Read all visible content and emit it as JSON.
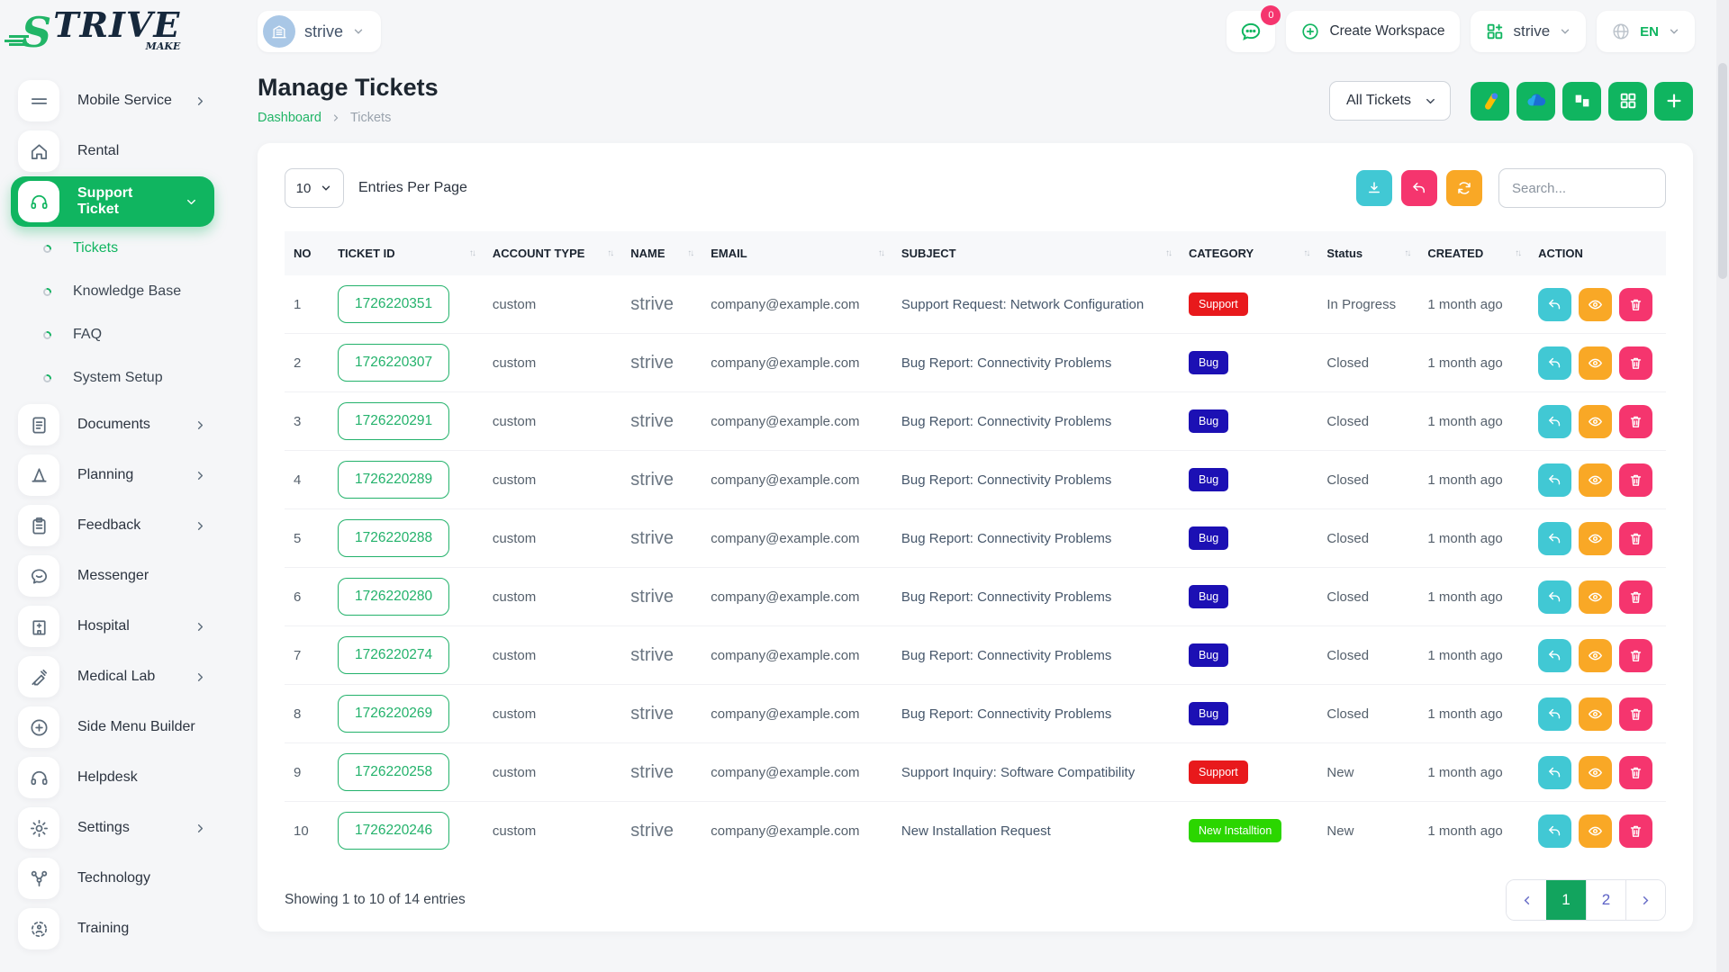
{
  "brand": {
    "initial": "S",
    "rest": "TRIVE",
    "suffix": "MAKE"
  },
  "topbar": {
    "workspace_selector": {
      "label": "strive"
    },
    "chat_badge": "0",
    "create_workspace_label": "Create Workspace",
    "workspace_menu_label": "strive",
    "language": "EN"
  },
  "sidebar": {
    "items": [
      {
        "label": "Mobile Service",
        "icon": "menu",
        "chevron": "right"
      },
      {
        "label": "Rental",
        "icon": "home"
      },
      {
        "label": "Support Ticket",
        "icon": "headset",
        "chevron": "down",
        "active": true,
        "children": [
          {
            "label": "Tickets",
            "active": true
          },
          {
            "label": "Knowledge Base"
          },
          {
            "label": "FAQ"
          },
          {
            "label": "System Setup"
          }
        ]
      },
      {
        "label": "Documents",
        "icon": "document",
        "chevron": "right"
      },
      {
        "label": "Planning",
        "icon": "cone",
        "chevron": "right"
      },
      {
        "label": "Feedback",
        "icon": "clipboard",
        "chevron": "right"
      },
      {
        "label": "Messenger",
        "icon": "chat"
      },
      {
        "label": "Hospital",
        "icon": "hospital",
        "chevron": "right"
      },
      {
        "label": "Medical Lab",
        "icon": "syringe",
        "chevron": "right"
      },
      {
        "label": "Side Menu Builder",
        "icon": "plus-circle"
      },
      {
        "label": "Helpdesk",
        "icon": "headset"
      },
      {
        "label": "Settings",
        "icon": "gear",
        "chevron": "right"
      },
      {
        "label": "Technology",
        "icon": "network"
      },
      {
        "label": "Training",
        "icon": "target"
      }
    ]
  },
  "page": {
    "title": "Manage Tickets",
    "breadcrumb": [
      "Dashboard",
      "Tickets"
    ],
    "filter_label": "All Tickets"
  },
  "table_controls": {
    "entries_value": "10",
    "entries_label": "Entries Per Page",
    "search_placeholder": "Search..."
  },
  "table": {
    "columns": [
      {
        "label": "NO",
        "sortable": false
      },
      {
        "label": "TICKET ID",
        "sortable": true
      },
      {
        "label": "ACCOUNT TYPE",
        "sortable": true
      },
      {
        "label": "NAME",
        "sortable": true
      },
      {
        "label": "EMAIL",
        "sortable": true
      },
      {
        "label": "SUBJECT",
        "sortable": true
      },
      {
        "label": "CATEGORY",
        "sortable": true
      },
      {
        "label": "Status",
        "sortable": true
      },
      {
        "label": "CREATED",
        "sortable": true
      },
      {
        "label": "ACTION",
        "sortable": false
      }
    ],
    "rows": [
      {
        "no": "1",
        "ticket_id": "1726220351",
        "account_type": "custom",
        "name": "strive",
        "email": "company@example.com",
        "subject": "Support Request: Network Configuration",
        "category": "Support",
        "badge": "support",
        "status": "In Progress",
        "created": "1 month ago"
      },
      {
        "no": "2",
        "ticket_id": "1726220307",
        "account_type": "custom",
        "name": "strive",
        "email": "company@example.com",
        "subject": "Bug Report: Connectivity Problems",
        "category": "Bug",
        "badge": "bug",
        "status": "Closed",
        "created": "1 month ago"
      },
      {
        "no": "3",
        "ticket_id": "1726220291",
        "account_type": "custom",
        "name": "strive",
        "email": "company@example.com",
        "subject": "Bug Report: Connectivity Problems",
        "category": "Bug",
        "badge": "bug",
        "status": "Closed",
        "created": "1 month ago"
      },
      {
        "no": "4",
        "ticket_id": "1726220289",
        "account_type": "custom",
        "name": "strive",
        "email": "company@example.com",
        "subject": "Bug Report: Connectivity Problems",
        "category": "Bug",
        "badge": "bug",
        "status": "Closed",
        "created": "1 month ago"
      },
      {
        "no": "5",
        "ticket_id": "1726220288",
        "account_type": "custom",
        "name": "strive",
        "email": "company@example.com",
        "subject": "Bug Report: Connectivity Problems",
        "category": "Bug",
        "badge": "bug",
        "status": "Closed",
        "created": "1 month ago"
      },
      {
        "no": "6",
        "ticket_id": "1726220280",
        "account_type": "custom",
        "name": "strive",
        "email": "company@example.com",
        "subject": "Bug Report: Connectivity Problems",
        "category": "Bug",
        "badge": "bug",
        "status": "Closed",
        "created": "1 month ago"
      },
      {
        "no": "7",
        "ticket_id": "1726220274",
        "account_type": "custom",
        "name": "strive",
        "email": "company@example.com",
        "subject": "Bug Report: Connectivity Problems",
        "category": "Bug",
        "badge": "bug",
        "status": "Closed",
        "created": "1 month ago"
      },
      {
        "no": "8",
        "ticket_id": "1726220269",
        "account_type": "custom",
        "name": "strive",
        "email": "company@example.com",
        "subject": "Bug Report: Connectivity Problems",
        "category": "Bug",
        "badge": "bug",
        "status": "Closed",
        "created": "1 month ago"
      },
      {
        "no": "9",
        "ticket_id": "1726220258",
        "account_type": "custom",
        "name": "strive",
        "email": "company@example.com",
        "subject": "Support Inquiry: Software Compatibility",
        "category": "Support",
        "badge": "support",
        "status": "New",
        "created": "1 month ago"
      },
      {
        "no": "10",
        "ticket_id": "1726220246",
        "account_type": "custom",
        "name": "strive",
        "email": "company@example.com",
        "subject": "New Installation Request",
        "category": "New Installtion",
        "badge": "install",
        "status": "New",
        "created": "1 month ago"
      }
    ]
  },
  "pagination": {
    "summary": "Showing 1 to 10 of 14 entries",
    "pages": [
      "1",
      "2"
    ],
    "active_page": "1"
  },
  "colors": {
    "accent": "#10b560",
    "badge_support": "#e8191c",
    "badge_bug": "#1c10b4",
    "badge_install": "#2bd600",
    "action_reply": "#41c8d4",
    "action_view": "#f9a826",
    "action_delete": "#f5356e",
    "btn_download": "#41c8d4",
    "btn_undo": "#f5356e",
    "btn_refresh": "#f9a826"
  }
}
